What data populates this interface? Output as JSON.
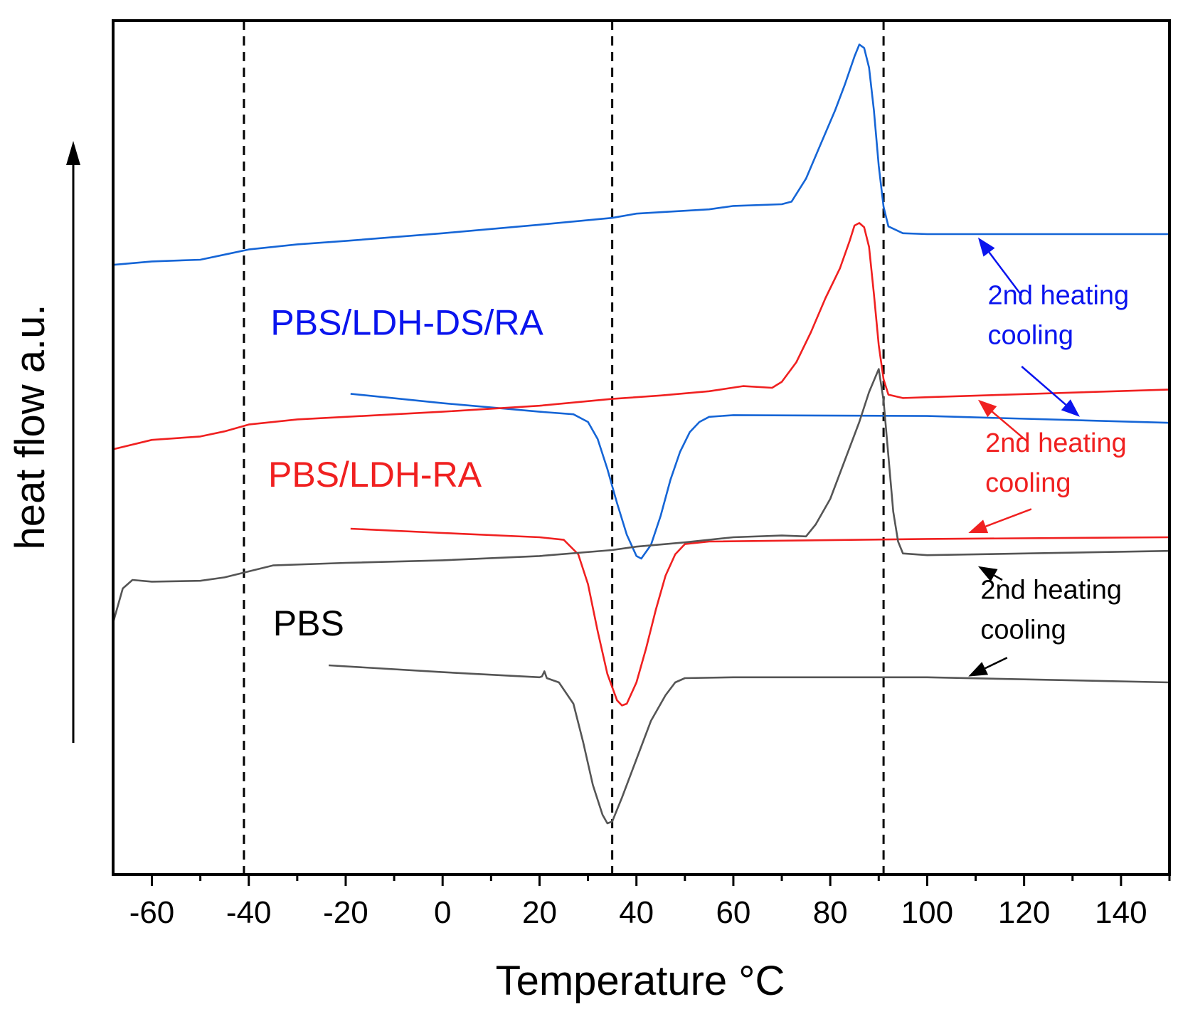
{
  "chart_data": {
    "type": "line",
    "title": "",
    "xlabel": "Temperature °C",
    "ylabel": "heat flow a.u.",
    "xlim": [
      -68,
      150
    ],
    "ylim": [
      0,
      100
    ],
    "x_ticks": [
      -60,
      -40,
      -20,
      0,
      20,
      40,
      60,
      80,
      100,
      120,
      140
    ],
    "x_tick_labels": [
      "-60",
      "-40",
      "-20",
      "0",
      "20",
      "40",
      "60",
      "80",
      "100",
      "120",
      "140"
    ],
    "x_minor_step": 10,
    "reference_lines_x": [
      -41,
      35,
      91
    ],
    "colors": {
      "blue": "#1565d6",
      "red": "#f02020",
      "black": "#555555",
      "text_blue": "#0a14ee"
    },
    "series": [
      {
        "name": "PBS/LDH-DS/RA 2nd heating",
        "color": "#1565d6",
        "points": [
          [
            -68,
            71.4
          ],
          [
            -60,
            71.8
          ],
          [
            -50,
            72.0
          ],
          [
            -45,
            72.6
          ],
          [
            -40,
            73.2
          ],
          [
            -30,
            73.8
          ],
          [
            -20,
            74.2
          ],
          [
            0,
            75.1
          ],
          [
            20,
            76.1
          ],
          [
            35,
            76.9
          ],
          [
            40,
            77.4
          ],
          [
            55,
            77.9
          ],
          [
            60,
            78.3
          ],
          [
            70,
            78.5
          ],
          [
            72,
            78.8
          ],
          [
            75,
            81.5
          ],
          [
            78,
            85.5
          ],
          [
            81,
            89.5
          ],
          [
            83,
            92.5
          ],
          [
            85,
            95.8
          ],
          [
            86,
            97.2
          ],
          [
            87,
            96.8
          ],
          [
            88,
            94.5
          ],
          [
            89,
            89.5
          ],
          [
            90,
            83.0
          ],
          [
            91,
            78.2
          ],
          [
            92,
            75.9
          ],
          [
            95,
            75.1
          ],
          [
            100,
            75.0
          ],
          [
            150,
            75.0
          ]
        ]
      },
      {
        "name": "PBS/LDH-DS/RA cooling",
        "color": "#1565d6",
        "points": [
          [
            -19,
            56.3
          ],
          [
            0,
            55.2
          ],
          [
            20,
            54.2
          ],
          [
            27,
            53.9
          ],
          [
            30,
            53.0
          ],
          [
            32,
            51.0
          ],
          [
            34,
            47.5
          ],
          [
            36,
            43.5
          ],
          [
            38,
            39.8
          ],
          [
            40,
            37.3
          ],
          [
            41,
            37.0
          ],
          [
            43,
            38.6
          ],
          [
            45,
            42.0
          ],
          [
            47,
            46.2
          ],
          [
            49,
            49.5
          ],
          [
            51,
            51.8
          ],
          [
            53,
            53.0
          ],
          [
            55,
            53.6
          ],
          [
            60,
            53.8
          ],
          [
            100,
            53.7
          ],
          [
            150,
            52.9
          ]
        ]
      },
      {
        "name": "PBS/LDH-RA 2nd heating",
        "color": "#f02020",
        "points": [
          [
            -68,
            49.8
          ],
          [
            -60,
            50.9
          ],
          [
            -50,
            51.3
          ],
          [
            -45,
            51.9
          ],
          [
            -40,
            52.7
          ],
          [
            -30,
            53.3
          ],
          [
            -20,
            53.6
          ],
          [
            0,
            54.2
          ],
          [
            20,
            54.9
          ],
          [
            35,
            55.7
          ],
          [
            45,
            56.1
          ],
          [
            55,
            56.6
          ],
          [
            62,
            57.2
          ],
          [
            68,
            57.0
          ],
          [
            70,
            57.7
          ],
          [
            73,
            60.0
          ],
          [
            76,
            63.5
          ],
          [
            79,
            67.5
          ],
          [
            82,
            71.0
          ],
          [
            84,
            74.2
          ],
          [
            85,
            76.0
          ],
          [
            86,
            76.3
          ],
          [
            87,
            75.8
          ],
          [
            88,
            73.5
          ],
          [
            89,
            68.0
          ],
          [
            90,
            62.0
          ],
          [
            91,
            58.0
          ],
          [
            92,
            56.2
          ],
          [
            95,
            55.8
          ],
          [
            100,
            55.9
          ],
          [
            150,
            56.8
          ]
        ]
      },
      {
        "name": "PBS/LDH-RA cooling",
        "color": "#f02020",
        "points": [
          [
            -19,
            40.5
          ],
          [
            0,
            40.0
          ],
          [
            20,
            39.5
          ],
          [
            25,
            39.2
          ],
          [
            28,
            37.5
          ],
          [
            30,
            34.0
          ],
          [
            32,
            28.5
          ],
          [
            34,
            23.5
          ],
          [
            36,
            20.4
          ],
          [
            37,
            19.8
          ],
          [
            38,
            20.0
          ],
          [
            40,
            22.5
          ],
          [
            42,
            26.5
          ],
          [
            44,
            31.0
          ],
          [
            46,
            35.0
          ],
          [
            48,
            37.5
          ],
          [
            50,
            38.7
          ],
          [
            55,
            39.0
          ],
          [
            100,
            39.3
          ],
          [
            150,
            39.5
          ]
        ]
      },
      {
        "name": "PBS 2nd heating",
        "color": "#555555",
        "points": [
          [
            -68,
            29.5
          ],
          [
            -66,
            33.5
          ],
          [
            -64,
            34.5
          ],
          [
            -60,
            34.3
          ],
          [
            -50,
            34.4
          ],
          [
            -45,
            34.8
          ],
          [
            -40,
            35.5
          ],
          [
            -35,
            36.2
          ],
          [
            -20,
            36.5
          ],
          [
            0,
            36.8
          ],
          [
            20,
            37.3
          ],
          [
            35,
            38.0
          ],
          [
            40,
            38.4
          ],
          [
            50,
            38.9
          ],
          [
            60,
            39.5
          ],
          [
            70,
            39.7
          ],
          [
            75,
            39.6
          ],
          [
            77,
            41.0
          ],
          [
            80,
            44.0
          ],
          [
            83,
            48.5
          ],
          [
            86,
            53.0
          ],
          [
            88,
            56.5
          ],
          [
            90,
            59.2
          ],
          [
            91,
            55.5
          ],
          [
            92,
            49.0
          ],
          [
            93,
            42.5
          ],
          [
            94,
            39.0
          ],
          [
            95,
            37.6
          ],
          [
            100,
            37.4
          ],
          [
            150,
            37.9
          ]
        ]
      },
      {
        "name": "PBS cooling",
        "color": "#555555",
        "points": [
          [
            -23.5,
            24.5
          ],
          [
            0,
            23.7
          ],
          [
            20,
            23.1
          ],
          [
            20.5,
            23.2
          ],
          [
            21,
            23.8
          ],
          [
            21.5,
            23.0
          ],
          [
            24,
            22.5
          ],
          [
            27,
            20.0
          ],
          [
            29,
            15.5
          ],
          [
            31,
            10.5
          ],
          [
            33,
            7.0
          ],
          [
            34,
            6.0
          ],
          [
            35,
            6.2
          ],
          [
            37,
            9.0
          ],
          [
            40,
            13.5
          ],
          [
            43,
            18.0
          ],
          [
            46,
            21.0
          ],
          [
            48,
            22.5
          ],
          [
            50,
            23.0
          ],
          [
            60,
            23.1
          ],
          [
            100,
            23.1
          ],
          [
            150,
            22.5
          ]
        ]
      }
    ],
    "series_labels": [
      {
        "text": "PBS/LDH-DS/RA",
        "color": "#0a14ee",
        "x": -35.5,
        "y": 63.2
      },
      {
        "text": "PBS/LDH-RA",
        "color": "#f02020",
        "x": -36,
        "y": 45.4
      },
      {
        "text": "PBS",
        "color": "#000000",
        "x": -35,
        "y": 28.0
      }
    ],
    "annotations": [
      {
        "line1": "2nd heating",
        "line2": "cooling",
        "color": "#0a14ee",
        "x": 112.5,
        "y": 66.8,
        "arrow_up": {
          "from": [
            119.5,
            67.8
          ],
          "to": [
            110.5,
            74.6
          ]
        },
        "arrow_down": {
          "from": [
            119.5,
            59.5
          ],
          "to": [
            131.5,
            53.6
          ]
        }
      },
      {
        "line1": "2nd heating",
        "line2": "cooling",
        "color": "#f02020",
        "x": 112,
        "y": 49.5,
        "arrow_up": {
          "from": [
            120.5,
            50.8
          ],
          "to": [
            110.5,
            55.6
          ]
        },
        "arrow_down": {
          "from": [
            121.5,
            42.8
          ],
          "to": [
            108.5,
            40.0
          ]
        }
      },
      {
        "line1": "2nd heating",
        "line2": "cooling",
        "color": "#000000",
        "x": 111,
        "y": 32.3,
        "arrow_up": {
          "from": [
            115.5,
            34.5
          ],
          "to": [
            110.5,
            36.1
          ]
        },
        "arrow_down": {
          "from": [
            116.5,
            25.4
          ],
          "to": [
            108.5,
            23.2
          ]
        }
      }
    ]
  }
}
